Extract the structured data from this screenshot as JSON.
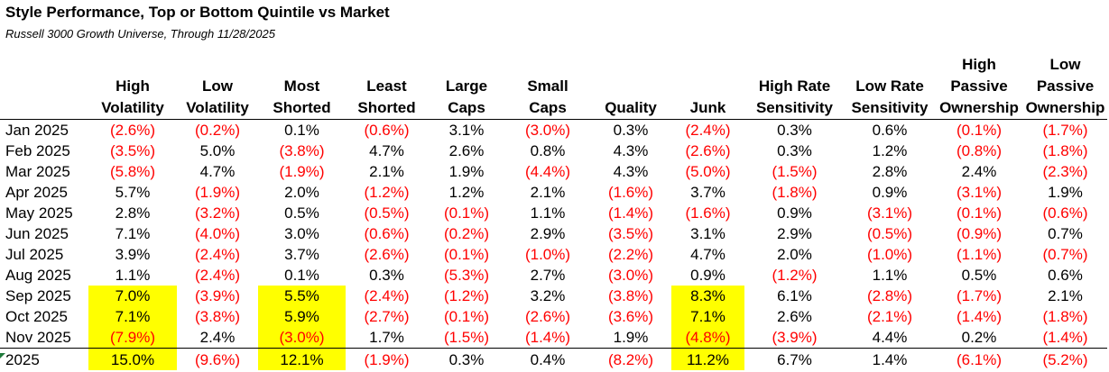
{
  "title": "Style Performance, Top or Bottom Quintile vs Market",
  "subtitle": "Russell 3000 Growth Universe, Through 11/28/2025",
  "columns": [
    [
      "High",
      "Volatility"
    ],
    [
      "Low",
      "Volatility"
    ],
    [
      "Most",
      "Shorted"
    ],
    [
      "Least",
      "Shorted"
    ],
    [
      "Large",
      "Caps"
    ],
    [
      "Small",
      "Caps"
    ],
    [
      "Quality"
    ],
    [
      "Junk"
    ],
    [
      "High Rate",
      "Sensitivity"
    ],
    [
      "Low Rate",
      "Sensitivity"
    ],
    [
      "High",
      "Passive",
      "Ownership"
    ],
    [
      "Low",
      "Passive",
      "Ownership"
    ]
  ],
  "rows": [
    {
      "label": "Jan 2025",
      "values": [
        "(2.6%)",
        "(0.2%)",
        "0.1%",
        "(0.6%)",
        "3.1%",
        "(3.0%)",
        "0.3%",
        "(2.4%)",
        "0.3%",
        "0.6%",
        "(0.1%)",
        "(1.7%)"
      ]
    },
    {
      "label": "Feb 2025",
      "values": [
        "(3.5%)",
        "5.0%",
        "(3.8%)",
        "4.7%",
        "2.6%",
        "0.8%",
        "4.3%",
        "(2.6%)",
        "0.3%",
        "1.2%",
        "(0.8%)",
        "(1.8%)"
      ]
    },
    {
      "label": "Mar 2025",
      "values": [
        "(5.8%)",
        "4.7%",
        "(1.9%)",
        "2.1%",
        "1.9%",
        "(4.4%)",
        "4.3%",
        "(5.0%)",
        "(1.5%)",
        "2.8%",
        "2.4%",
        "(2.3%)"
      ]
    },
    {
      "label": "Apr 2025",
      "values": [
        "5.7%",
        "(1.9%)",
        "2.0%",
        "(1.2%)",
        "1.2%",
        "2.1%",
        "(1.6%)",
        "3.7%",
        "(1.8%)",
        "0.9%",
        "(3.1%)",
        "1.9%"
      ]
    },
    {
      "label": "May 2025",
      "values": [
        "2.8%",
        "(3.2%)",
        "0.5%",
        "(0.5%)",
        "(0.1%)",
        "1.1%",
        "(1.4%)",
        "(1.6%)",
        "0.9%",
        "(3.1%)",
        "(0.1%)",
        "(0.6%)"
      ]
    },
    {
      "label": "Jun 2025",
      "values": [
        "7.1%",
        "(4.0%)",
        "3.0%",
        "(0.6%)",
        "(0.2%)",
        "2.9%",
        "(3.5%)",
        "3.1%",
        "2.9%",
        "(0.5%)",
        "(0.9%)",
        "0.7%"
      ]
    },
    {
      "label": "Jul 2025",
      "values": [
        "3.9%",
        "(2.4%)",
        "3.7%",
        "(2.6%)",
        "(0.1%)",
        "(1.0%)",
        "(2.2%)",
        "4.7%",
        "2.0%",
        "(1.0%)",
        "(1.1%)",
        "(0.7%)"
      ]
    },
    {
      "label": "Aug 2025",
      "values": [
        "1.1%",
        "(2.4%)",
        "0.1%",
        "0.3%",
        "(5.3%)",
        "2.7%",
        "(3.0%)",
        "0.9%",
        "(1.2%)",
        "1.1%",
        "0.5%",
        "0.6%"
      ]
    },
    {
      "label": "Sep 2025",
      "values": [
        "7.0%",
        "(3.9%)",
        "5.5%",
        "(2.4%)",
        "(1.2%)",
        "3.2%",
        "(3.8%)",
        "8.3%",
        "6.1%",
        "(2.8%)",
        "(1.7%)",
        "2.1%"
      ]
    },
    {
      "label": "Oct 2025",
      "values": [
        "7.1%",
        "(3.8%)",
        "5.9%",
        "(2.7%)",
        "(0.1%)",
        "(2.6%)",
        "(3.6%)",
        "7.1%",
        "2.6%",
        "(2.1%)",
        "(1.4%)",
        "(1.8%)"
      ]
    },
    {
      "label": "Nov 2025",
      "values": [
        "(7.9%)",
        "2.4%",
        "(3.0%)",
        "1.7%",
        "(1.5%)",
        "(1.4%)",
        "1.9%",
        "(4.8%)",
        "(3.9%)",
        "4.4%",
        "0.2%",
        "(1.4%)"
      ]
    }
  ],
  "total": {
    "label": "2025",
    "values": [
      "15.0%",
      "(9.6%)",
      "12.1%",
      "(1.9%)",
      "0.3%",
      "0.4%",
      "(8.2%)",
      "11.2%",
      "6.7%",
      "1.4%",
      "(6.1%)",
      "(5.2%)"
    ]
  },
  "highlight_columns": [
    0,
    2,
    7
  ],
  "highlight_from_row": 8,
  "colors": {
    "negative": "#ff0000",
    "highlight": "#ffff00",
    "corner_marker": "#1f7a3a"
  }
}
